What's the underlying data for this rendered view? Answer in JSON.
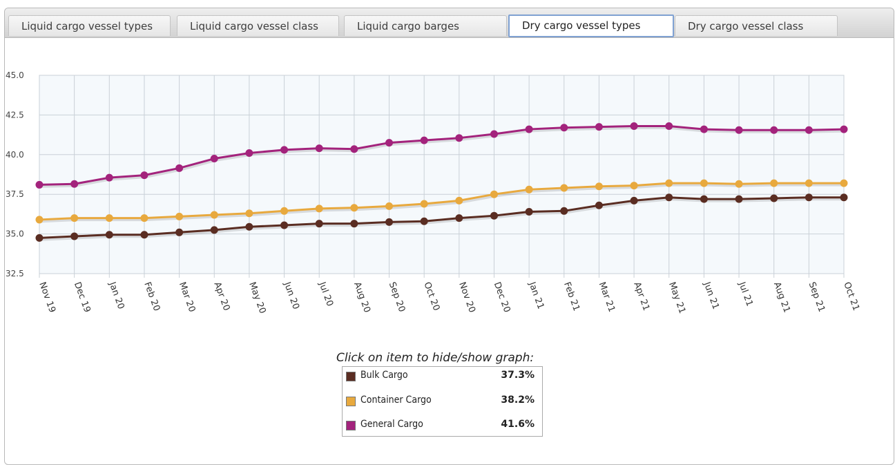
{
  "tabs": [
    {
      "label": "Liquid cargo vessel types",
      "active": false
    },
    {
      "label": "Liquid cargo vessel class",
      "active": false
    },
    {
      "label": "Liquid cargo barges",
      "active": false
    },
    {
      "label": "Dry cargo vessel types",
      "active": true
    },
    {
      "label": "Dry cargo vessel class",
      "active": false
    }
  ],
  "legend": {
    "title": "Click on item to hide/show graph:",
    "items": [
      {
        "name": "Bulk Cargo",
        "value": "37.3%",
        "color": "#5a2d22"
      },
      {
        "name": "Container Cargo",
        "value": "38.2%",
        "color": "#e8a93e"
      },
      {
        "name": "General Cargo",
        "value": "41.6%",
        "color": "#a3237c"
      }
    ]
  },
  "chart_data": {
    "type": "line",
    "categories": [
      "Nov 19",
      "Dec 19",
      "Jan 20",
      "Feb 20",
      "Mar 20",
      "Apr 20",
      "May 20",
      "Jun 20",
      "Jul 20",
      "Aug 20",
      "Sep 20",
      "Oct 20",
      "Nov 20",
      "Dec 20",
      "Jan 21",
      "Feb 21",
      "Mar 21",
      "Apr 21",
      "May 21",
      "Jun 21",
      "Jul 21",
      "Aug 21",
      "Sep 21",
      "Oct 21"
    ],
    "ylim": [
      32.5,
      45.0
    ],
    "yticks": [
      "32.5",
      "35.0",
      "37.5",
      "40.0",
      "42.5",
      "45.0"
    ],
    "grid": true,
    "series": [
      {
        "name": "General Cargo",
        "color": "#a3237c",
        "values": [
          38.1,
          38.15,
          38.55,
          38.7,
          39.15,
          39.75,
          40.1,
          40.3,
          40.4,
          40.35,
          40.75,
          40.9,
          41.05,
          41.3,
          41.6,
          41.7,
          41.75,
          41.8,
          41.8,
          41.6,
          41.55,
          41.55,
          41.55,
          41.6
        ]
      },
      {
        "name": "Container Cargo",
        "color": "#e8a93e",
        "values": [
          35.9,
          36.0,
          36.0,
          36.0,
          36.1,
          36.2,
          36.3,
          36.45,
          36.6,
          36.65,
          36.75,
          36.9,
          37.1,
          37.5,
          37.8,
          37.9,
          38.0,
          38.05,
          38.2,
          38.2,
          38.15,
          38.2,
          38.2,
          38.2
        ]
      },
      {
        "name": "Bulk Cargo",
        "color": "#5a2d22",
        "values": [
          34.75,
          34.85,
          34.95,
          34.95,
          35.1,
          35.25,
          35.45,
          35.55,
          35.65,
          35.65,
          35.75,
          35.8,
          36.0,
          36.15,
          36.4,
          36.45,
          36.8,
          37.1,
          37.3,
          37.2,
          37.2,
          37.25,
          37.3,
          37.3
        ]
      }
    ]
  }
}
